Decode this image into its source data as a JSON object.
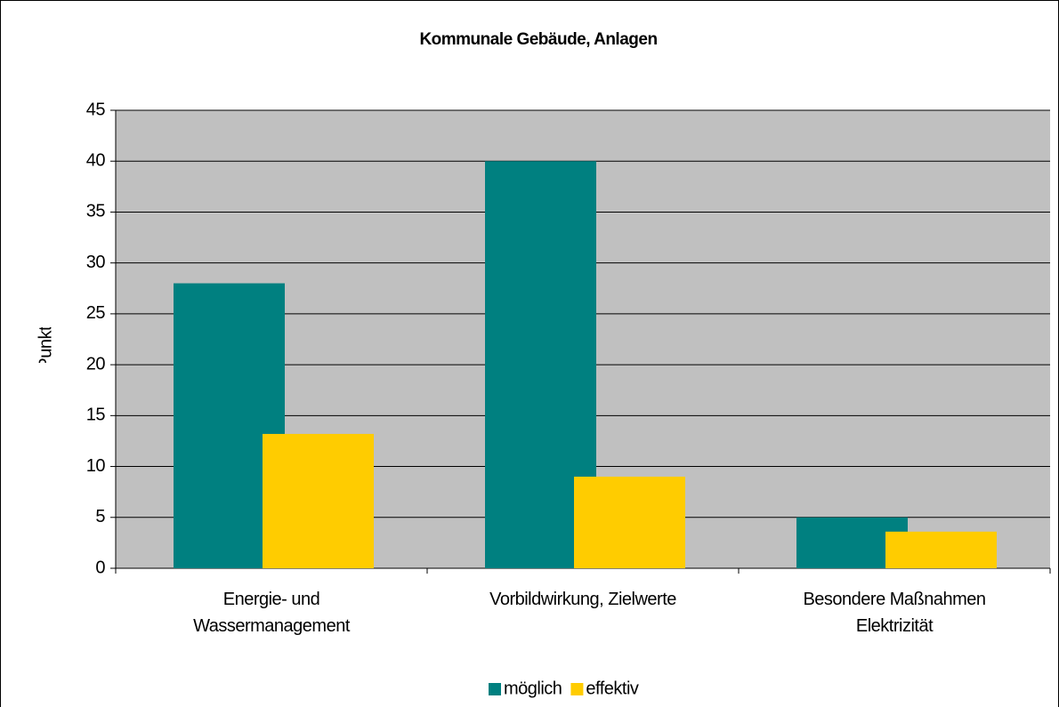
{
  "chart_data": {
    "type": "bar",
    "title": "Kommunale Gebäude, Anlagen",
    "y_label": "Punkte",
    "categories": [
      "Energie- und Wassermanagement",
      "Vorbildwirkung, Zielwerte",
      "Besondere Maßnahmen Elektrizität"
    ],
    "series": [
      {
        "name": "möglich",
        "color": "#008080",
        "values": [
          28,
          40,
          5
        ]
      },
      {
        "name": "effektiv",
        "color": "#ffcc00",
        "values": [
          13.2,
          9,
          3.6
        ]
      }
    ],
    "ylim": [
      0,
      45
    ],
    "yticks": [
      0,
      5,
      10,
      15,
      20,
      25,
      30,
      35,
      40,
      45
    ],
    "grid": true,
    "legend": "bottom"
  }
}
